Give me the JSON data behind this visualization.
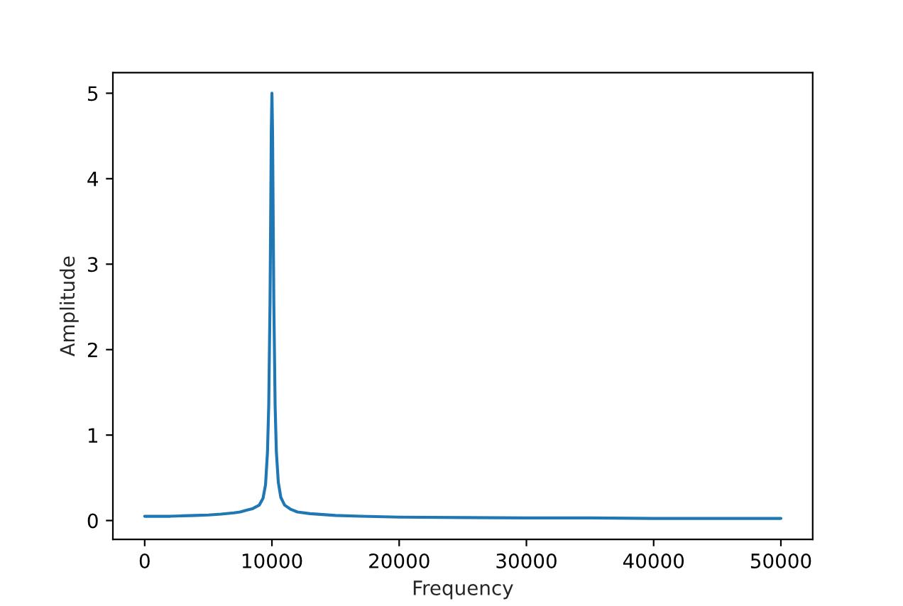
{
  "chart_data": {
    "type": "line",
    "xlabel": "Frequency",
    "ylabel": "Amplitude",
    "x": [
      0,
      1000,
      2000,
      3000,
      4000,
      5000,
      6000,
      7000,
      7500,
      8000,
      8500,
      9000,
      9300,
      9500,
      9650,
      9750,
      9850,
      9900,
      9950,
      10000,
      10050,
      10100,
      10150,
      10250,
      10350,
      10500,
      10700,
      11000,
      11500,
      12000,
      13000,
      14000,
      15000,
      17000,
      20000,
      25000,
      30000,
      35000,
      40000,
      45000,
      50000
    ],
    "series": [
      {
        "color": "#1f77b4",
        "values": [
          0.05,
          0.05,
          0.05,
          0.055,
          0.06,
          0.065,
          0.075,
          0.09,
          0.1,
          0.12,
          0.14,
          0.18,
          0.26,
          0.42,
          0.8,
          1.35,
          2.55,
          3.5,
          4.55,
          5.0,
          4.55,
          3.5,
          2.55,
          1.35,
          0.8,
          0.45,
          0.27,
          0.18,
          0.13,
          0.1,
          0.08,
          0.07,
          0.06,
          0.05,
          0.04,
          0.035,
          0.03,
          0.03,
          0.025,
          0.025,
          0.025
        ]
      }
    ],
    "xlim": [
      -2500,
      52500
    ],
    "ylim": [
      -0.22,
      5.24
    ],
    "xticks": [
      0,
      10000,
      20000,
      30000,
      40000,
      50000
    ],
    "yticks": [
      0,
      1,
      2,
      3,
      4,
      5
    ],
    "grid": false,
    "legend": false,
    "marker": "none",
    "line_style": "solid"
  }
}
